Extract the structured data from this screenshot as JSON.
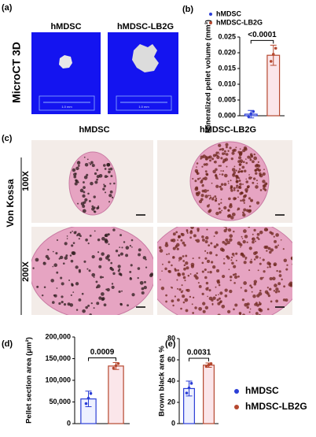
{
  "panels": {
    "a": {
      "label": "(a)",
      "title": "MicroCT 3D",
      "columns": [
        "hMDSC",
        "hMDSC-LB2G"
      ],
      "scale_bar": "1.0 mm"
    },
    "b": {
      "label": "(b)"
    },
    "c": {
      "label": "(c)",
      "stain": "Von Kossa",
      "columns": [
        "hMDSC",
        "hMDSC-LB2G"
      ],
      "rows": [
        "100X",
        "200X"
      ]
    },
    "d": {
      "label": "(d)"
    },
    "e": {
      "label": "(e)"
    }
  },
  "chart_data": [
    {
      "type": "bar",
      "y_label": "Mineralized pellet volume (mm³)",
      "categories": [
        "hMDSC",
        "hMDSC-LB2G"
      ],
      "values": [
        0.0005,
        0.0192
      ],
      "errors": [
        0.0012,
        0.0032
      ],
      "colors": [
        "#2b3ed6",
        "#b5482f"
      ],
      "ylim": [
        0,
        0.025
      ],
      "yticks": [
        {
          "value": 0,
          "label": "0.000"
        },
        0.005,
        {
          "value": 0.01,
          "label": "0.010"
        },
        0.015,
        {
          "value": 0.02,
          "label": "0.020"
        },
        0.025
      ],
      "annotation": "<0.0001"
    },
    {
      "type": "bar",
      "y_label": "Pellet section area (μm²)",
      "categories": [
        "hMDSC",
        "hMDSC-LB2G"
      ],
      "values": [
        57000,
        133000
      ],
      "errors": [
        18000,
        8000
      ],
      "colors": [
        "#2b3ed6",
        "#b5482f"
      ],
      "ylim": [
        0,
        200000
      ],
      "yticks": [
        0,
        {
          "value": 50000,
          "label": "50,000"
        },
        {
          "value": 100000,
          "label": "100,000"
        },
        {
          "value": 150000,
          "label": "150,000"
        },
        {
          "value": 200000,
          "label": "200,000"
        }
      ],
      "annotation": "0.0009"
    },
    {
      "type": "bar",
      "y_label": "Brown black area %",
      "categories": [
        "hMDSC",
        "hMDSC-LB2G"
      ],
      "values": [
        33,
        55
      ],
      "errors": [
        7,
        2
      ],
      "colors": [
        "#2b3ed6",
        "#b5482f"
      ],
      "ylim": [
        0,
        80
      ],
      "yticks": [
        0,
        20,
        40,
        60,
        80
      ],
      "annotation": "0.0031"
    }
  ]
}
